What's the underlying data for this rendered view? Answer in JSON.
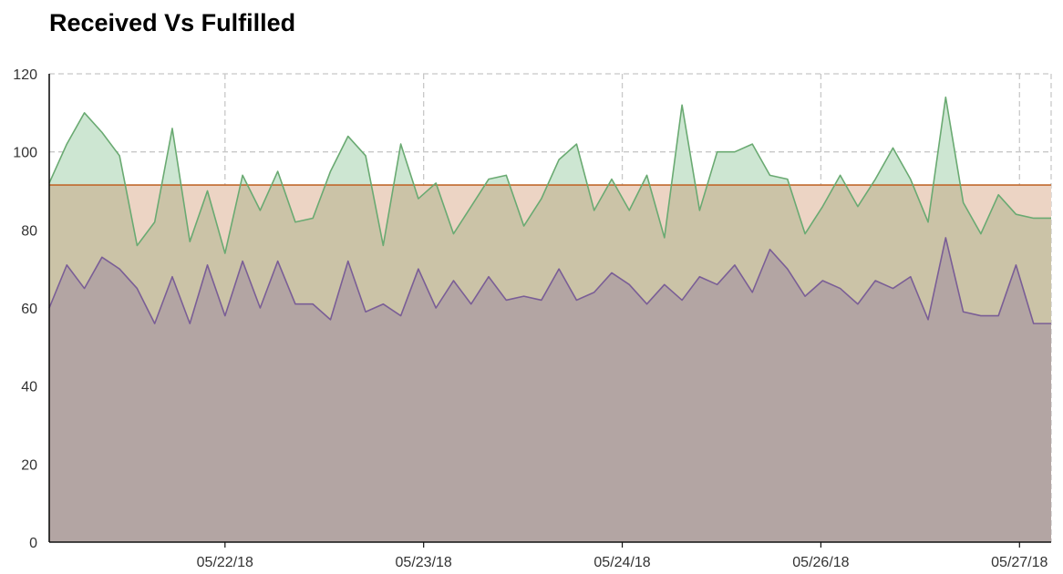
{
  "chart_data": {
    "type": "area",
    "title": "Received Vs Fulfilled",
    "xlabel": "",
    "ylabel": "",
    "ylim": [
      0,
      120
    ],
    "yticks": [
      0,
      20,
      40,
      60,
      80,
      100,
      120
    ],
    "xticks": [
      {
        "x": 10.0,
        "label": "05/22/18"
      },
      {
        "x": 21.3,
        "label": "05/23/18"
      },
      {
        "x": 32.6,
        "label": "05/24/18"
      },
      {
        "x": 43.9,
        "label": "05/26/18"
      },
      {
        "x": 55.2,
        "label": "05/27/18"
      }
    ],
    "grid": true,
    "legend": "none",
    "colors": {
      "upper_series_line": "#6aaa72",
      "upper_series_fill": "#cde6d2",
      "reference_line": "#c0692d",
      "reference_fill": "#ecd4c4",
      "lower_series_line": "#7a5e96",
      "lower_series_fill": "#b3a5a3",
      "overlap_fill": "#cbc3a7"
    },
    "x": [
      0,
      1,
      2,
      3,
      4,
      5,
      6,
      7,
      8,
      9,
      10,
      11,
      12,
      13,
      14,
      15,
      16,
      17,
      18,
      19,
      20,
      21,
      22,
      23,
      24,
      25,
      26,
      27,
      28,
      29,
      30,
      31,
      32,
      33,
      34,
      35,
      36,
      37,
      38,
      39,
      40,
      41,
      42,
      43,
      44,
      45,
      46,
      47,
      48,
      49,
      50,
      51,
      52,
      53,
      54,
      55,
      56,
      57
    ],
    "reference_value": 91.5,
    "series": [
      {
        "values": [
          92,
          102,
          110,
          105,
          99,
          76,
          82,
          106,
          77,
          90,
          74,
          94,
          85,
          95,
          82,
          83,
          95,
          104,
          99,
          76,
          102,
          88,
          92,
          79,
          86,
          93,
          94,
          81,
          88,
          98,
          102,
          85,
          93,
          85,
          94,
          78,
          112,
          85,
          100,
          100,
          102,
          94,
          93,
          79,
          86,
          94,
          86,
          93,
          101,
          93,
          82,
          114,
          87,
          79,
          89,
          84,
          83,
          83
        ]
      },
      {
        "values": [
          60,
          71,
          65,
          73,
          70,
          65,
          56,
          68,
          56,
          71,
          58,
          72,
          60,
          72,
          61,
          61,
          57,
          72,
          59,
          61,
          58,
          70,
          60,
          67,
          61,
          68,
          62,
          63,
          62,
          70,
          62,
          64,
          69,
          66,
          61,
          66,
          62,
          68,
          66,
          71,
          64,
          75,
          70,
          63,
          67,
          65,
          61,
          67,
          65,
          68,
          57,
          78,
          59,
          58,
          58,
          71,
          56,
          56
        ]
      }
    ]
  }
}
